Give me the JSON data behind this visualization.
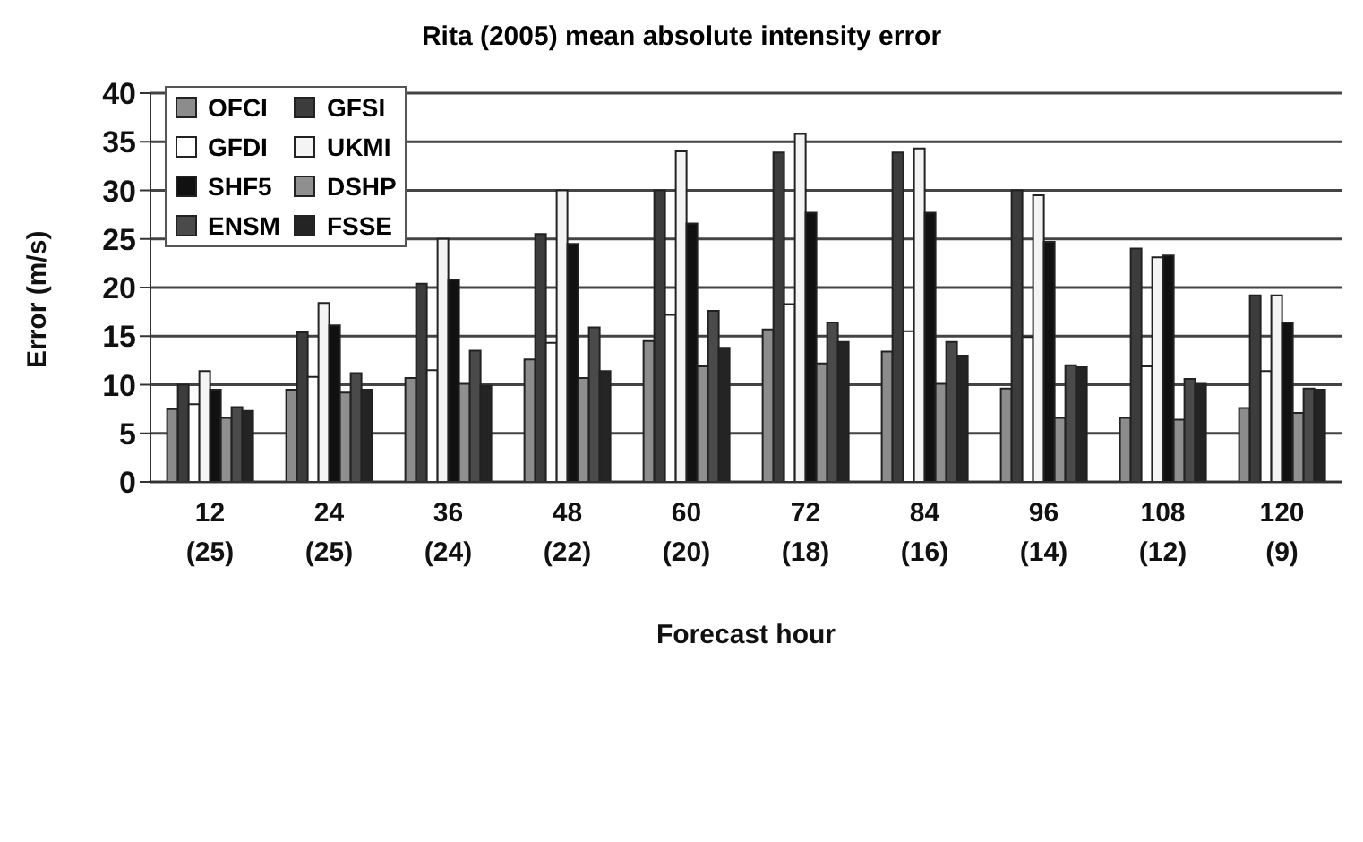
{
  "chart_data": {
    "type": "bar",
    "title": "Rita (2005) mean absolute intensity error",
    "xlabel": "Forecast hour",
    "ylabel": "Error (m/s)",
    "categories": [
      "12\n(25)",
      "24\n(25)",
      "36\n(24)",
      "48\n(22)",
      "60\n(20)",
      "72\n(18)",
      "84\n(16)",
      "96\n(14)",
      "108\n(12)",
      "120\n(9)"
    ],
    "series": [
      {
        "name": "OFCI",
        "color": "#8c8c8c",
        "values": [
          7.5,
          9.5,
          10.7,
          12.6,
          14.5,
          15.7,
          13.4,
          9.6,
          6.6,
          7.6
        ]
      },
      {
        "name": "GFSI",
        "color": "#3c3c3c",
        "values": [
          10,
          15.4,
          20.4,
          25.5,
          30,
          33.9,
          33.9,
          30,
          24,
          19.2
        ]
      },
      {
        "name": "GFDI",
        "color": "#ffffff",
        "values": [
          8,
          10.8,
          11.5,
          14.3,
          17.2,
          18.3,
          15.5,
          14.9,
          11.9,
          11.4
        ]
      },
      {
        "name": "UKMI",
        "color": "#f4f4f4",
        "values": [
          11.4,
          18.4,
          25,
          30,
          34,
          35.8,
          34.3,
          29.5,
          23.1,
          19.2
        ]
      },
      {
        "name": "SHF5",
        "color": "#111111",
        "values": [
          9.5,
          16.1,
          20.8,
          24.5,
          26.6,
          27.7,
          27.7,
          24.7,
          23.3,
          16.4
        ]
      },
      {
        "name": "DSHP",
        "color": "#8f8f8f",
        "values": [
          6.6,
          9.2,
          10.1,
          10.7,
          11.9,
          12.2,
          10.1,
          6.6,
          6.4,
          7.1
        ]
      },
      {
        "name": "ENSM",
        "color": "#4a4a4a",
        "values": [
          7.7,
          11.2,
          13.5,
          15.9,
          17.6,
          16.4,
          14.4,
          12,
          10.6,
          9.6
        ]
      },
      {
        "name": "FSSE",
        "color": "#242424",
        "values": [
          7.3,
          9.5,
          9.9,
          11.4,
          13.8,
          14.4,
          13,
          11.8,
          10.1,
          9.5
        ]
      }
    ],
    "ylim": [
      0,
      40
    ],
    "yticks": [
      0,
      5,
      10,
      15,
      20,
      25,
      30,
      35,
      40
    ],
    "grid": "y",
    "legend": "top left"
  }
}
